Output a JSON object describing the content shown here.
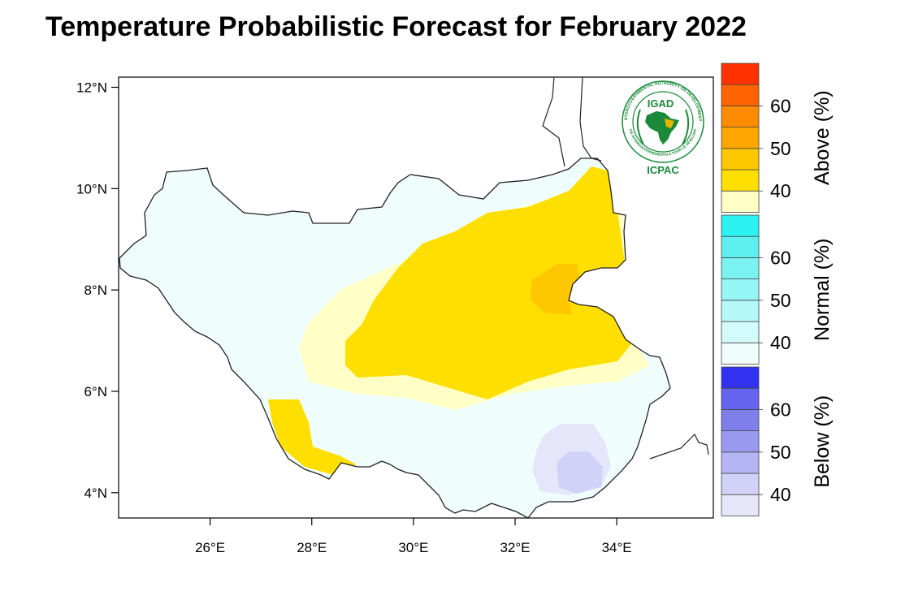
{
  "title": "Temperature Probabilistic Forecast for February 2022",
  "map": {
    "lon_range": [
      24.2,
      35.9
    ],
    "lat_range": [
      3.5,
      12.2
    ],
    "lat_ticks": [
      {
        "value": 12,
        "label": "12°N"
      },
      {
        "value": 10,
        "label": "10°N"
      },
      {
        "value": 8,
        "label": "8°N"
      },
      {
        "value": 6,
        "label": "6°N"
      },
      {
        "value": 4,
        "label": "4°N"
      }
    ],
    "lon_ticks": [
      {
        "value": 26,
        "label": "26°E"
      },
      {
        "value": 28,
        "label": "28°E"
      },
      {
        "value": 30,
        "label": "30°E"
      },
      {
        "value": 32,
        "label": "32°E"
      },
      {
        "value": 34,
        "label": "34°E"
      }
    ],
    "region_colors": {
      "normal_base": "#f0fdfd",
      "above_40": "#ffffc6",
      "above_45": "#ffdf00",
      "above_50": "#ffc700",
      "below_40": "#e6e6fb",
      "below_45": "#d2d2f8"
    }
  },
  "legend": {
    "groups": [
      {
        "title": "Above (%)",
        "colors": [
          "#ffffc6",
          "#ffdf00",
          "#ffc700",
          "#ffa500",
          "#ff8c00",
          "#ff6400",
          "#ff3200"
        ],
        "labels": [
          "40",
          "50",
          "60"
        ]
      },
      {
        "title": "Normal (%)",
        "colors": [
          "#f0fdfd",
          "#d4fbfb",
          "#b5f8f8",
          "#96f5f5",
          "#7af2f2",
          "#5ef0f0",
          "#2cf2f2"
        ],
        "labels": [
          "40",
          "50",
          "60"
        ]
      },
      {
        "title": "Below (%)",
        "colors": [
          "#e6e6fb",
          "#d2d2f8",
          "#b5b5f5",
          "#9999f0",
          "#7f7feb",
          "#6464f0",
          "#3232f0"
        ],
        "labels": [
          "40",
          "50",
          "60"
        ]
      }
    ]
  },
  "logo": {
    "top_text": "IGAD",
    "bottom_text": "ICPAC",
    "ring_text": "INTERGOVERNMENTAL AUTHORITY ON DEVELOPMENT",
    "ring_text_bottom": "AUTORITÉ INTERGOUVERNEMENTALE POUR LE DÉVELOPPEMENT",
    "colors": {
      "green": "#1a8a3a",
      "gold": "#e8b400"
    }
  }
}
